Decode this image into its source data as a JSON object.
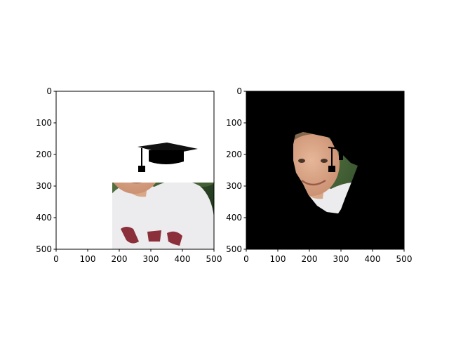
{
  "chart_data": [
    {
      "type": "image",
      "content": "photo of a smiling boy wearing a white t-shirt outdoors in front of green trees, with a black graduation cap drawn on his head",
      "xlim": [
        0,
        500
      ],
      "ylim": [
        500,
        0
      ],
      "xticks": [
        0,
        100,
        200,
        300,
        400,
        500
      ],
      "yticks": [
        0,
        100,
        200,
        300,
        400,
        500
      ],
      "xtick_labels": [
        "0",
        "100",
        "200",
        "300",
        "400",
        "500"
      ],
      "ytick_labels": [
        "0",
        "100",
        "200",
        "300",
        "400",
        "500"
      ],
      "title": "",
      "xlabel": "",
      "ylabel": ""
    },
    {
      "type": "image",
      "content": "same photo masked to show only the face region with the graduation cap tassel, everything else black",
      "xlim": [
        0,
        500
      ],
      "ylim": [
        500,
        0
      ],
      "xticks": [
        0,
        100,
        200,
        300,
        400,
        500
      ],
      "yticks": [
        0,
        100,
        200,
        300,
        400,
        500
      ],
      "xtick_labels": [
        "0",
        "100",
        "200",
        "300",
        "400",
        "500"
      ],
      "ytick_labels": [
        "0",
        "100",
        "200",
        "300",
        "400",
        "500"
      ],
      "title": "",
      "xlabel": "",
      "ylabel": ""
    }
  ],
  "colors": {
    "background": "#ffffff",
    "axis": "#000000",
    "mask": "#000000",
    "foliage_dark": "#2f4a26",
    "foliage_light": "#7d9a5c",
    "skin": "#d9a789",
    "hair": "#8a6a4e",
    "shirt": "#ecebed",
    "shirt_print": "#8b2f3b"
  }
}
